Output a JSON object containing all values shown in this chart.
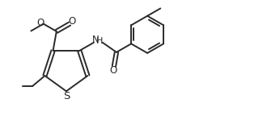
{
  "bg_color": "#ffffff",
  "line_color": "#2a2a2a",
  "line_width": 1.4,
  "figsize": [
    3.3,
    1.54
  ],
  "dpi": 100,
  "xlim": [
    0.0,
    9.5
  ],
  "ylim": [
    0.5,
    5.0
  ]
}
